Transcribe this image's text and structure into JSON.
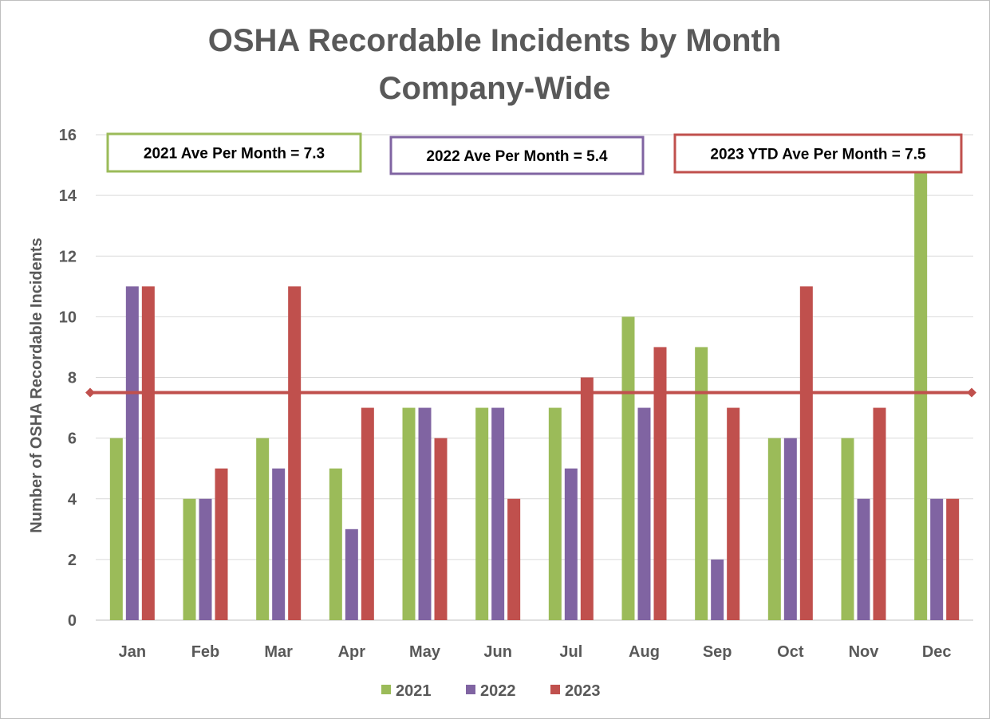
{
  "chart_data": {
    "type": "bar",
    "title": [
      "OSHA Recordable Incidents by Month",
      "Company-Wide"
    ],
    "xlabel": "",
    "ylabel": "Number of OSHA Recordable Incidents",
    "ylim": [
      0,
      16
    ],
    "yticks": [
      0,
      2,
      4,
      6,
      8,
      10,
      12,
      14,
      16
    ],
    "grid": true,
    "legend_position": "bottom",
    "categories": [
      "Jan",
      "Feb",
      "Mar",
      "Apr",
      "May",
      "Jun",
      "Jul",
      "Aug",
      "Sep",
      "Oct",
      "Nov",
      "Dec"
    ],
    "series": [
      {
        "name": "2021",
        "color": "#9BBB59",
        "values": [
          6,
          4,
          6,
          5,
          7,
          7,
          7,
          10,
          9,
          6,
          6,
          15
        ]
      },
      {
        "name": "2022",
        "color": "#8064A2",
        "values": [
          11,
          4,
          5,
          3,
          7,
          7,
          5,
          7,
          2,
          6,
          4,
          4
        ]
      },
      {
        "name": "2023",
        "color": "#C0504D",
        "values": [
          11,
          5,
          11,
          7,
          6,
          4,
          8,
          9,
          7,
          11,
          7,
          4
        ]
      }
    ],
    "reference_line": {
      "name": "2023 YTD Average",
      "value": 7.5,
      "color": "#C0504D"
    },
    "annotations": [
      {
        "text": "2021 Ave Per Month = 7.3",
        "color": "#9BBB59"
      },
      {
        "text": "2022 Ave Per Month = 5.4",
        "color": "#8064A2"
      },
      {
        "text": "2023 YTD Ave Per Month = 7.5",
        "color": "#C0504D"
      }
    ]
  }
}
